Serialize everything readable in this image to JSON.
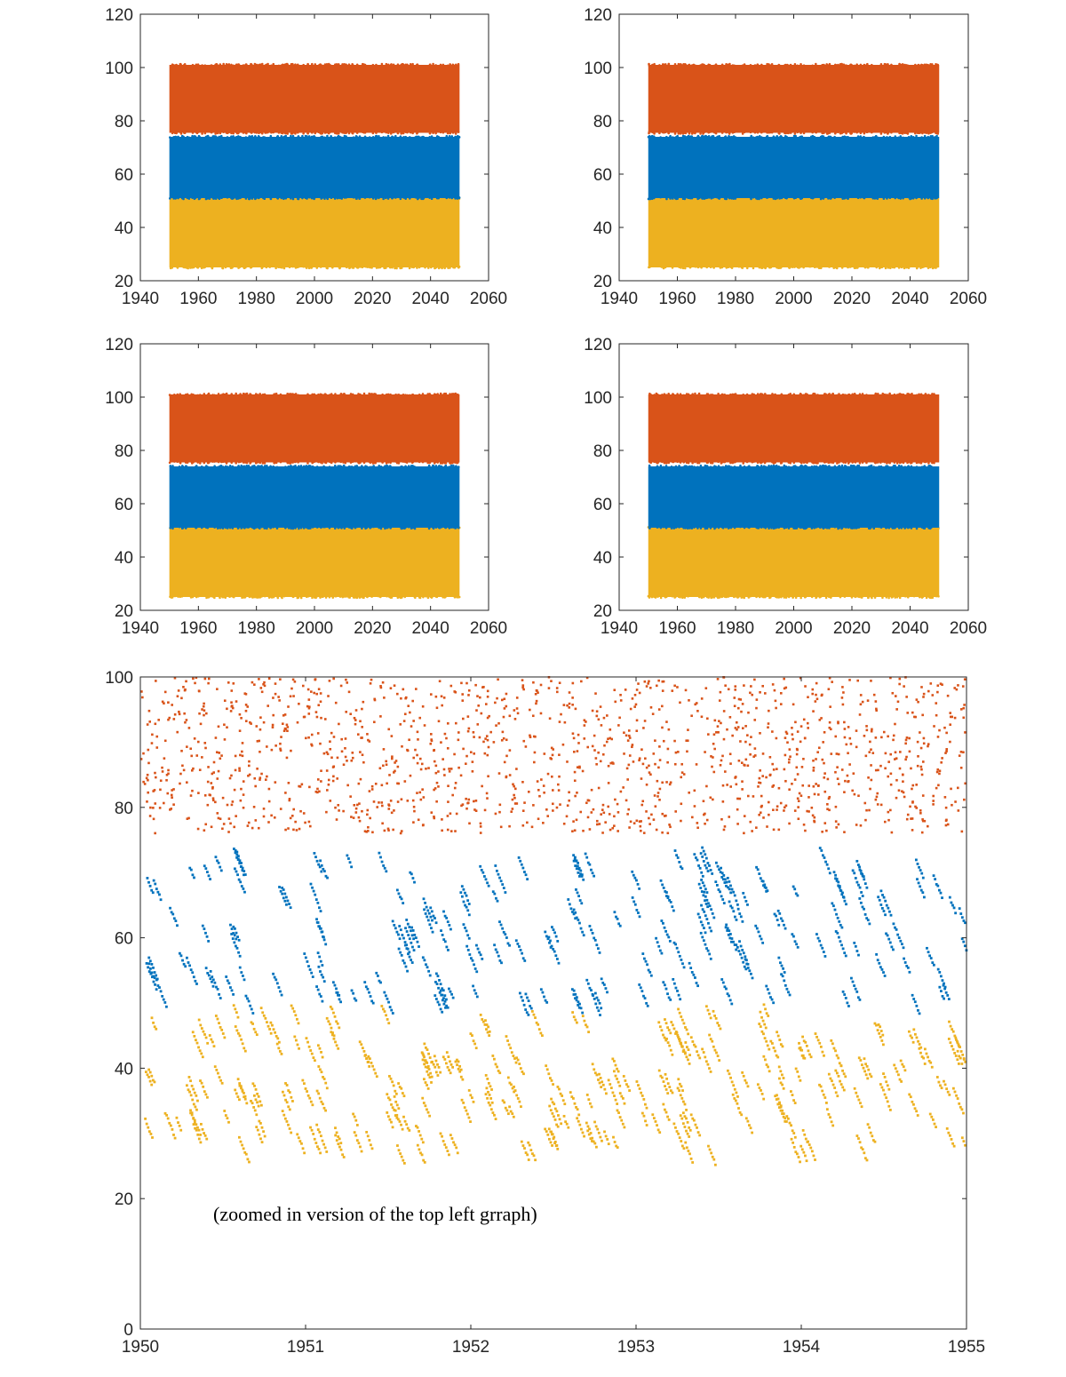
{
  "colors": {
    "series1": "#EDB120",
    "series2": "#0072BD",
    "series3": "#D95319",
    "axis": "#262626",
    "background": "#ffffff"
  },
  "chart_data": [
    {
      "type": "scatter",
      "title": "",
      "xlabel": "",
      "ylabel": "",
      "xlim": [
        1940,
        2060
      ],
      "ylim": [
        20,
        120
      ],
      "xticks": [
        "1940",
        "1960",
        "1980",
        "2000",
        "2020",
        "2040",
        "2060"
      ],
      "yticks": [
        "20",
        "40",
        "60",
        "80",
        "100",
        "120"
      ],
      "grid": false,
      "series": [
        {
          "x_range": [
            1950,
            2050
          ],
          "y_range": [
            25,
            51
          ],
          "color": "#EDB120"
        },
        {
          "x_range": [
            1950,
            2050
          ],
          "y_range": [
            51,
            74
          ],
          "color": "#0072BD"
        },
        {
          "x_range": [
            1950,
            2050
          ],
          "y_range": [
            75.5,
            101
          ],
          "color": "#D95319"
        }
      ]
    },
    {
      "type": "scatter",
      "title": "",
      "xlabel": "",
      "ylabel": "",
      "xlim": [
        1940,
        2060
      ],
      "ylim": [
        20,
        120
      ],
      "xticks": [
        "1940",
        "1960",
        "1980",
        "2000",
        "2020",
        "2040",
        "2060"
      ],
      "yticks": [
        "20",
        "40",
        "60",
        "80",
        "100",
        "120"
      ],
      "grid": false,
      "series": [
        {
          "x_range": [
            1950,
            2050
          ],
          "y_range": [
            25,
            51
          ],
          "color": "#EDB120"
        },
        {
          "x_range": [
            1950,
            2050
          ],
          "y_range": [
            51,
            74
          ],
          "color": "#0072BD"
        },
        {
          "x_range": [
            1950,
            2050
          ],
          "y_range": [
            75.5,
            101
          ],
          "color": "#D95319"
        }
      ]
    },
    {
      "type": "scatter",
      "title": "",
      "xlabel": "",
      "ylabel": "",
      "xlim": [
        1940,
        2060
      ],
      "ylim": [
        20,
        120
      ],
      "xticks": [
        "1940",
        "1960",
        "1980",
        "2000",
        "2020",
        "2040",
        "2060"
      ],
      "yticks": [
        "20",
        "40",
        "60",
        "80",
        "100",
        "120"
      ],
      "grid": false,
      "series": [
        {
          "x_range": [
            1950,
            2050
          ],
          "y_range": [
            25,
            51
          ],
          "color": "#EDB120"
        },
        {
          "x_range": [
            1950,
            2050
          ],
          "y_range": [
            51,
            74
          ],
          "color": "#0072BD"
        },
        {
          "x_range": [
            1950,
            2050
          ],
          "y_range": [
            75.5,
            101
          ],
          "color": "#D95319"
        }
      ]
    },
    {
      "type": "scatter",
      "title": "",
      "xlabel": "",
      "ylabel": "",
      "xlim": [
        1940,
        2060
      ],
      "ylim": [
        20,
        120
      ],
      "xticks": [
        "1940",
        "1960",
        "1980",
        "2000",
        "2020",
        "2040",
        "2060"
      ],
      "yticks": [
        "20",
        "40",
        "60",
        "80",
        "100",
        "120"
      ],
      "grid": false,
      "series": [
        {
          "x_range": [
            1950,
            2050
          ],
          "y_range": [
            25,
            51
          ],
          "color": "#EDB120"
        },
        {
          "x_range": [
            1950,
            2050
          ],
          "y_range": [
            51,
            74
          ],
          "color": "#0072BD"
        },
        {
          "x_range": [
            1950,
            2050
          ],
          "y_range": [
            75.5,
            101
          ],
          "color": "#D95319"
        }
      ]
    },
    {
      "type": "scatter",
      "title": "",
      "xlabel": "",
      "ylabel": "",
      "xlim": [
        1950,
        1955
      ],
      "ylim": [
        0,
        100
      ],
      "xticks": [
        "1950",
        "1951",
        "1952",
        "1953",
        "1954",
        "1955"
      ],
      "yticks": [
        "0",
        "20",
        "40",
        "60",
        "80",
        "100"
      ],
      "grid": false,
      "annotation": "(zoomed in version of the top left grraph)",
      "series": [
        {
          "x_range": [
            1950,
            1955
          ],
          "y_range": [
            25,
            50
          ],
          "color": "#EDB120",
          "pattern": "diagonal-streaks"
        },
        {
          "x_range": [
            1950,
            1955
          ],
          "y_range": [
            48,
            74
          ],
          "color": "#0072BD",
          "pattern": "diagonal-streaks"
        },
        {
          "x_range": [
            1950,
            1955
          ],
          "y_range": [
            76,
            100
          ],
          "color": "#D95319",
          "pattern": "dense-scatter"
        }
      ]
    }
  ]
}
